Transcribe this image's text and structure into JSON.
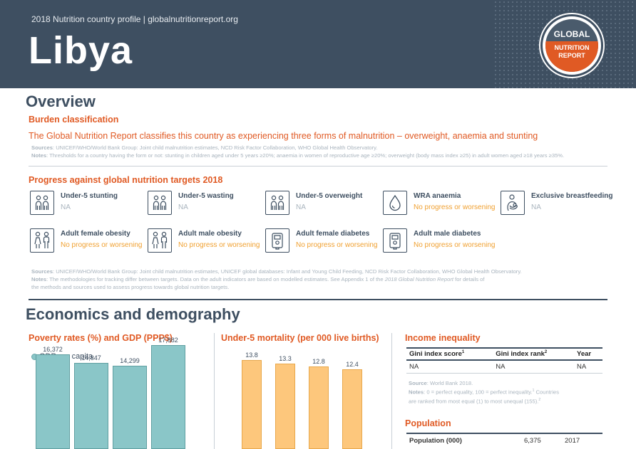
{
  "header": {
    "subtitle": "2018 Nutrition country profile  |  globalnutritionreport.org",
    "country": "Libya",
    "logo_top": "GLOBAL",
    "logo_bottom": "NUTRITION REPORT"
  },
  "overview": {
    "title": "Overview",
    "burden_heading": "Burden classification",
    "burden_text": "The Global Nutrition Report classifies this country as experiencing three forms of malnutrition – overweight, anaemia and stunting",
    "burden_sources_label": "Sources",
    "burden_sources": ": UNICEF/WHO/World Bank Group: Joint child malnutrition estimates, NCD Risk Factor Collaboration, WHO Global Health Observatory.",
    "burden_notes_label": "Notes",
    "burden_notes": ": Thresholds for a country having the form or not: stunting in children aged under 5 years ≥20%; anaemia in women of reproductive age ≥20%; overweight (body mass index ≥25) in adult women aged ≥18 years ≥35%.",
    "progress_heading": "Progress against global nutrition targets 2018",
    "targets": [
      {
        "name": "Under-5 stunting",
        "status": "NA",
        "icon": "children-icon",
        "cls": "na"
      },
      {
        "name": "Under-5 wasting",
        "status": "NA",
        "icon": "children-icon",
        "cls": "na"
      },
      {
        "name": "Under-5 overweight",
        "status": "NA",
        "icon": "children-icon",
        "cls": "na"
      },
      {
        "name": "WRA anaemia",
        "status": "No progress or worsening",
        "icon": "blood-drop-icon",
        "cls": "bad"
      },
      {
        "name": "Exclusive breastfeeding",
        "status": "NA",
        "icon": "breastfeeding-icon",
        "cls": "na"
      },
      {
        "name": "Adult female obesity",
        "status": "No progress or worsening",
        "icon": "adults-icon",
        "cls": "bad"
      },
      {
        "name": "Adult male obesity",
        "status": "No progress or worsening",
        "icon": "adults-icon",
        "cls": "bad"
      },
      {
        "name": "Adult female diabetes",
        "status": "No progress or worsening",
        "icon": "glucose-meter-icon",
        "cls": "bad"
      },
      {
        "name": "Adult male diabetes",
        "status": "No progress or worsening",
        "icon": "glucose-meter-icon",
        "cls": "bad"
      }
    ],
    "progress_sources_label": "Sources",
    "progress_sources": ": UNICEF/WHO/World Bank Group: Joint child malnutrition estimates, UNICEF global databases: Infant and Young Child Feeding, NCD Risk Factor Collaboration, WHO Global Health Observatory.",
    "progress_notes_label": "Notes",
    "progress_notes_a": ": The methodologies for tracking differ between targets. Data on the adult indicators are based on modelled estimates. See Appendix 1 of the ",
    "progress_notes_ital": "2018 Global Nutrition Report",
    "progress_notes_b": " for details of",
    "progress_notes_c": "the methods and sources used to assess progress towards global nutrition targets."
  },
  "economics": {
    "title": "Economics and demography",
    "poverty_heading": "Poverty rates (%) and GDP (PPP$)",
    "mortality_heading": "Under-5 mortality (per 000 live births)",
    "inequality_heading": "Income inequality",
    "gini_headers": [
      "Gini index score",
      "Gini index rank",
      "Year"
    ],
    "gini_sup": [
      "1",
      "2",
      ""
    ],
    "gini_values": [
      "NA",
      "NA",
      "NA"
    ],
    "gini_source_label": "Source",
    "gini_source": ": World Bank 2018.",
    "gini_notes_label": "Notes",
    "gini_notes_a": ": 0 = perfect equality, 100 = perfect inequality.",
    "gini_notes_sup1": "1",
    "gini_notes_b": " Countries",
    "gini_notes_c": "are ranked from most equal (1) to most unequal (155).",
    "gini_notes_sup2": "2",
    "population_heading": "Population",
    "population_label": "Population (000)",
    "population_value": "6,375",
    "population_year": "2017"
  },
  "chart_data": [
    {
      "type": "bar",
      "title": "Poverty rates (%) and GDP (PPP$)",
      "series": [
        {
          "name": "GDP per capita",
          "values": [
            16372,
            14847,
            14299,
            17882
          ]
        }
      ],
      "value_labels": [
        "16,372",
        "14,847",
        "14,299",
        "17,882"
      ],
      "ylim": [
        0,
        20000
      ],
      "colors": {
        "fill": "#8ac6c8"
      }
    },
    {
      "type": "bar",
      "title": "Under-5 mortality (per 000 live births)",
      "values": [
        13.8,
        13.3,
        12.8,
        12.4
      ],
      "value_labels": [
        "13.8",
        "13.3",
        "12.8",
        "12.4"
      ],
      "ylim": [
        0,
        14.5
      ],
      "colors": {
        "fill": "#fdc77c"
      }
    }
  ]
}
